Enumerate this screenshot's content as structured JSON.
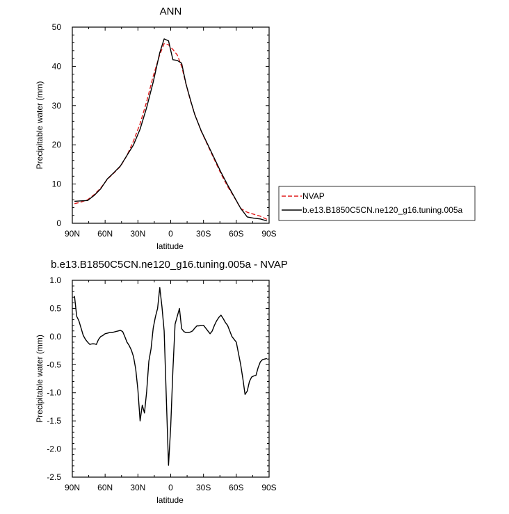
{
  "chart_data": [
    {
      "type": "line",
      "title": "ANN",
      "xlabel": "latitude",
      "ylabel": "Precipitable water (mm)",
      "xlim": [
        90,
        -90
      ],
      "ylim": [
        0,
        50
      ],
      "xticks": [
        90,
        60,
        30,
        0,
        -30,
        -60,
        -90
      ],
      "xtick_labels": [
        "90N",
        "60N",
        "30N",
        "0",
        "30S",
        "60S",
        "90S"
      ],
      "yticks": [
        0,
        10,
        20,
        30,
        40,
        50
      ],
      "ytick_labels": [
        "0",
        "10",
        "20",
        "30",
        "40",
        "50"
      ],
      "legend": {
        "placement": "right-outside"
      },
      "series": [
        {
          "name": "NVAP",
          "color": "#e01b1b",
          "style": "dashed",
          "x": [
            88,
            82,
            76,
            70,
            64,
            58,
            52,
            46,
            40,
            34,
            28,
            22,
            16,
            10,
            6,
            2,
            -2,
            -6,
            -10,
            -14,
            -18,
            -22,
            -28,
            -34,
            -40,
            -46,
            -52,
            -58,
            -64,
            -70,
            -76,
            -82,
            -88
          ],
          "y": [
            5.0,
            5.4,
            6.0,
            7.3,
            9.0,
            11.2,
            12.8,
            14.5,
            17.3,
            21.0,
            25.4,
            31.0,
            37.5,
            43.0,
            45.8,
            45.5,
            44.3,
            42.9,
            40.0,
            35.5,
            31.3,
            27.8,
            23.4,
            19.8,
            16.2,
            12.6,
            9.4,
            6.7,
            3.8,
            2.8,
            2.3,
            1.8,
            1.0
          ]
        },
        {
          "name": "b.e13.B1850C5CN.ne120_g16.tuning.005a",
          "color": "#000000",
          "style": "solid",
          "x": [
            88,
            82,
            76,
            70,
            64,
            58,
            52,
            46,
            40,
            34,
            28,
            22,
            16,
            10,
            6,
            2,
            -2,
            -6,
            -10,
            -14,
            -18,
            -22,
            -28,
            -34,
            -40,
            -46,
            -52,
            -58,
            -64,
            -70,
            -76,
            -82,
            -88
          ],
          "y": [
            5.6,
            5.7,
            5.8,
            7.1,
            8.8,
            11.3,
            12.9,
            14.6,
            17.3,
            20.0,
            24.0,
            29.5,
            36.0,
            43.5,
            47.0,
            46.5,
            41.7,
            41.5,
            40.8,
            35.5,
            31.5,
            27.7,
            23.5,
            20.0,
            16.5,
            13.0,
            9.8,
            6.8,
            3.8,
            1.6,
            1.3,
            1.1,
            0.6
          ]
        }
      ]
    },
    {
      "type": "line",
      "title": "b.e13.B1850C5CN.ne120_g16.tuning.005a - NVAP",
      "xlabel": "latitude",
      "ylabel": "Precipitable water (mm)",
      "xlim": [
        90,
        -90
      ],
      "ylim": [
        -2.5,
        1.0
      ],
      "xticks": [
        90,
        60,
        30,
        0,
        -30,
        -60,
        -90
      ],
      "xtick_labels": [
        "90N",
        "60N",
        "30N",
        "0",
        "30S",
        "60S",
        "90S"
      ],
      "yticks": [
        1.0,
        0.5,
        0.0,
        -0.5,
        -1.0,
        -1.5,
        -2.0,
        -2.5
      ],
      "ytick_labels": [
        "1.0",
        "0.5",
        "0.0",
        "-0.5",
        "-1.0",
        "-1.5",
        "-2.0",
        "-2.5"
      ],
      "series": [
        {
          "color": "#000000",
          "style": "solid",
          "x": [
            88,
            86,
            84,
            82,
            80,
            78,
            76,
            74,
            72,
            70,
            68,
            66,
            64,
            62,
            60,
            58,
            56,
            54,
            52,
            50,
            48,
            46,
            44,
            42,
            40,
            38,
            36,
            34,
            32,
            30,
            28,
            26,
            24,
            22,
            20,
            18,
            16,
            14,
            12,
            10,
            8,
            6,
            4,
            2,
            0,
            -2,
            -4,
            -6,
            -8,
            -10,
            -12,
            -14,
            -16,
            -18,
            -20,
            -22,
            -24,
            -26,
            -28,
            -30,
            -32,
            -34,
            -36,
            -38,
            -40,
            -42,
            -44,
            -46,
            -48,
            -50,
            -52,
            -54,
            -56,
            -58,
            -60,
            -62,
            -64,
            -66,
            -68,
            -70,
            -72,
            -74,
            -76,
            -78,
            -80,
            -82,
            -84,
            -86,
            -88
          ],
          "y": [
            0.72,
            0.36,
            0.28,
            0.15,
            0.02,
            -0.05,
            -0.1,
            -0.14,
            -0.13,
            -0.13,
            -0.14,
            -0.05,
            0.0,
            0.02,
            0.05,
            0.06,
            0.07,
            0.07,
            0.08,
            0.09,
            0.1,
            0.11,
            0.09,
            0.0,
            -0.1,
            -0.16,
            -0.24,
            -0.36,
            -0.58,
            -0.95,
            -1.5,
            -1.22,
            -1.36,
            -0.98,
            -0.44,
            -0.22,
            0.15,
            0.35,
            0.5,
            0.87,
            0.53,
            0.1,
            -1.1,
            -2.29,
            -1.6,
            -0.6,
            0.22,
            0.36,
            0.5,
            0.14,
            0.09,
            0.07,
            0.07,
            0.08,
            0.1,
            0.15,
            0.19,
            0.19,
            0.2,
            0.2,
            0.15,
            0.1,
            0.05,
            0.1,
            0.2,
            0.28,
            0.34,
            0.38,
            0.32,
            0.25,
            0.2,
            0.1,
            0.0,
            -0.05,
            -0.1,
            -0.3,
            -0.5,
            -0.75,
            -1.03,
            -0.97,
            -0.8,
            -0.72,
            -0.7,
            -0.69,
            -0.55,
            -0.45,
            -0.41,
            -0.4,
            -0.39
          ]
        }
      ]
    }
  ]
}
